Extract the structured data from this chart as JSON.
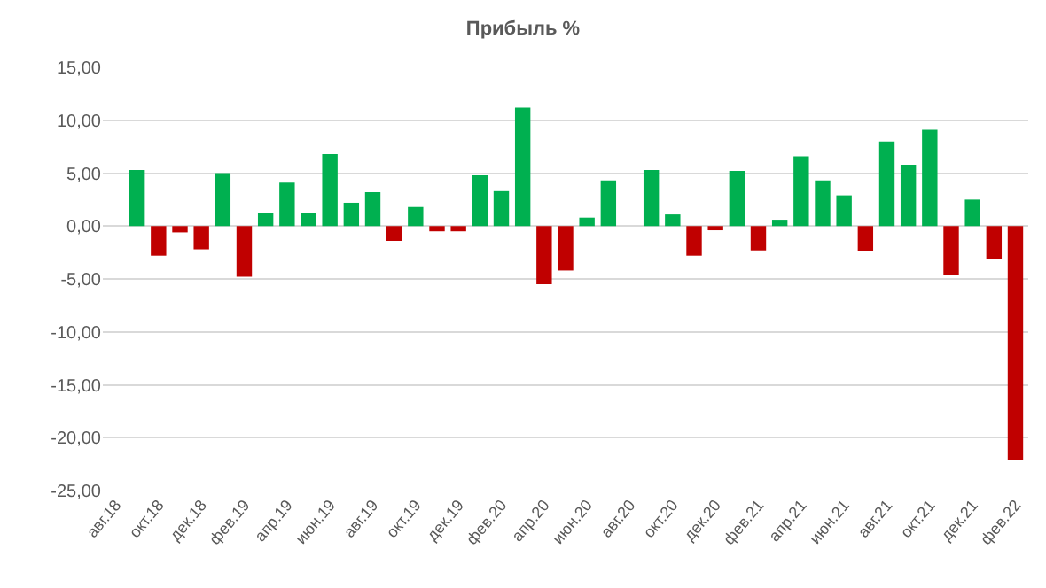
{
  "chart_data": {
    "type": "bar",
    "title": "Прибыль %",
    "categories": [
      "авг.18",
      null,
      "окт.18",
      null,
      "дек.18",
      null,
      "фев.19",
      null,
      "апр.19",
      null,
      "июн.19",
      null,
      "авг.19",
      null,
      "окт.19",
      null,
      "дек.19",
      null,
      "фев.20",
      null,
      "апр.20",
      null,
      "июн.20",
      null,
      "авг.20",
      null,
      "окт.20",
      null,
      "дек.20",
      null,
      "фев.21",
      null,
      "апр.21",
      null,
      "июн.21",
      null,
      "авг.21",
      null,
      "окт.21",
      null,
      "дек.21",
      null,
      "фев.22"
    ],
    "values": [
      0,
      5.3,
      -2.8,
      -0.6,
      -2.2,
      5.0,
      -4.8,
      1.2,
      4.1,
      1.2,
      6.8,
      2.2,
      3.2,
      -1.4,
      1.8,
      -0.5,
      -0.5,
      4.8,
      3.3,
      11.2,
      -5.5,
      -4.2,
      0.8,
      4.3,
      0,
      5.3,
      1.1,
      -2.8,
      -0.4,
      5.2,
      -2.3,
      0.6,
      6.6,
      4.3,
      2.9,
      -2.4,
      8.0,
      5.8,
      9.1,
      -4.6,
      2.5,
      -3.1,
      -22.1
    ],
    "colors": [
      "#00b050",
      "#00b050",
      "#c00000",
      "#c00000",
      "#c00000",
      "#00b050",
      "#c00000",
      "#00b050",
      "#00b050",
      "#00b050",
      "#00b050",
      "#00b050",
      "#00b050",
      "#c00000",
      "#00b050",
      "#c00000",
      "#c00000",
      "#00b050",
      "#00b050",
      "#00b050",
      "#c00000",
      "#c00000",
      "#00b050",
      "#00b050",
      "#00b050",
      "#00b050",
      "#00b050",
      "#c00000",
      "#c00000",
      "#00b050",
      "#c00000",
      "#00b050",
      "#00b050",
      "#00b050",
      "#00b050",
      "#c00000",
      "#00b050",
      "#00b050",
      "#00b050",
      "#c00000",
      "#00b050",
      "#c00000",
      "#c00000"
    ],
    "ylim": [
      -25,
      15
    ],
    "yticks": [
      {
        "value": -25,
        "label": "-25,00"
      },
      {
        "value": -20,
        "label": "-20,00"
      },
      {
        "value": -15,
        "label": "-15,00"
      },
      {
        "value": -10,
        "label": "-10,00"
      },
      {
        "value": -5,
        "label": "-5,00"
      },
      {
        "value": 0,
        "label": "0,00"
      },
      {
        "value": 5,
        "label": "5,00"
      },
      {
        "value": 10,
        "label": "10,00"
      },
      {
        "value": 15,
        "label": "15,00"
      }
    ],
    "grid": "y"
  }
}
